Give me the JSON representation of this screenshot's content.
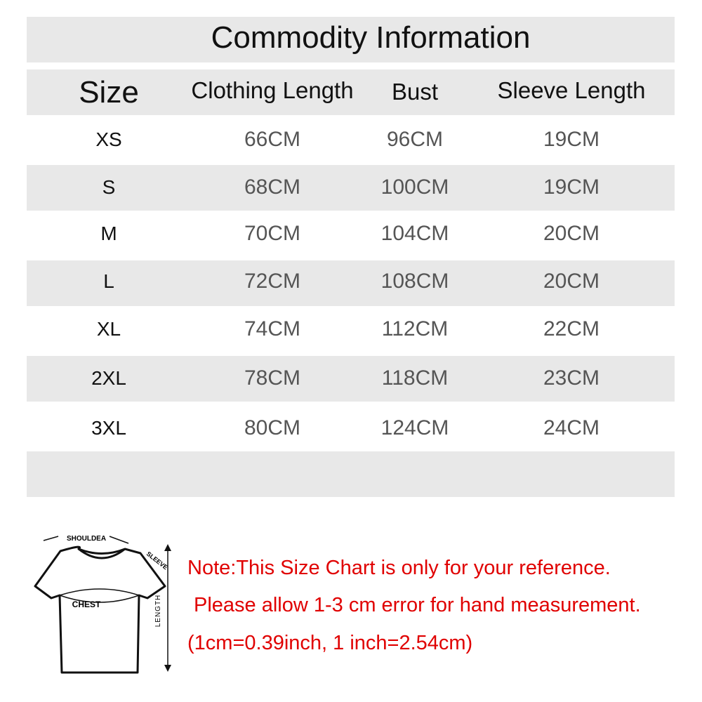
{
  "title": "Commodity Information",
  "headers": [
    "Size",
    "Clothing Length",
    "Bust",
    "Sleeve Length"
  ],
  "rows": [
    [
      "XS",
      "66CM",
      "96CM",
      "19CM"
    ],
    [
      "S",
      "68CM",
      "100CM",
      "19CM"
    ],
    [
      "M",
      "70CM",
      "104CM",
      "20CM"
    ],
    [
      "L",
      "72CM",
      "108CM",
      "20CM"
    ],
    [
      "XL",
      "74CM",
      "112CM",
      "22CM"
    ],
    [
      "2XL",
      "78CM",
      "118CM",
      "23CM"
    ],
    [
      "3XL",
      "80CM",
      "124CM",
      "24CM"
    ]
  ],
  "diagram": {
    "shoulder": "SHOULDEA",
    "sleeve": "SLEEVE",
    "chest": "CHEST",
    "length": "LENGTH"
  },
  "notes": [
    "Note:This Size Chart is only for your reference.",
    "Please allow 1-3 cm error for hand measurement.",
    "(1cm=0.39inch, 1 inch=2.54cm)"
  ],
  "colors": {
    "band": "#e8e8e8",
    "note": "#e00000",
    "value": "#555555"
  }
}
